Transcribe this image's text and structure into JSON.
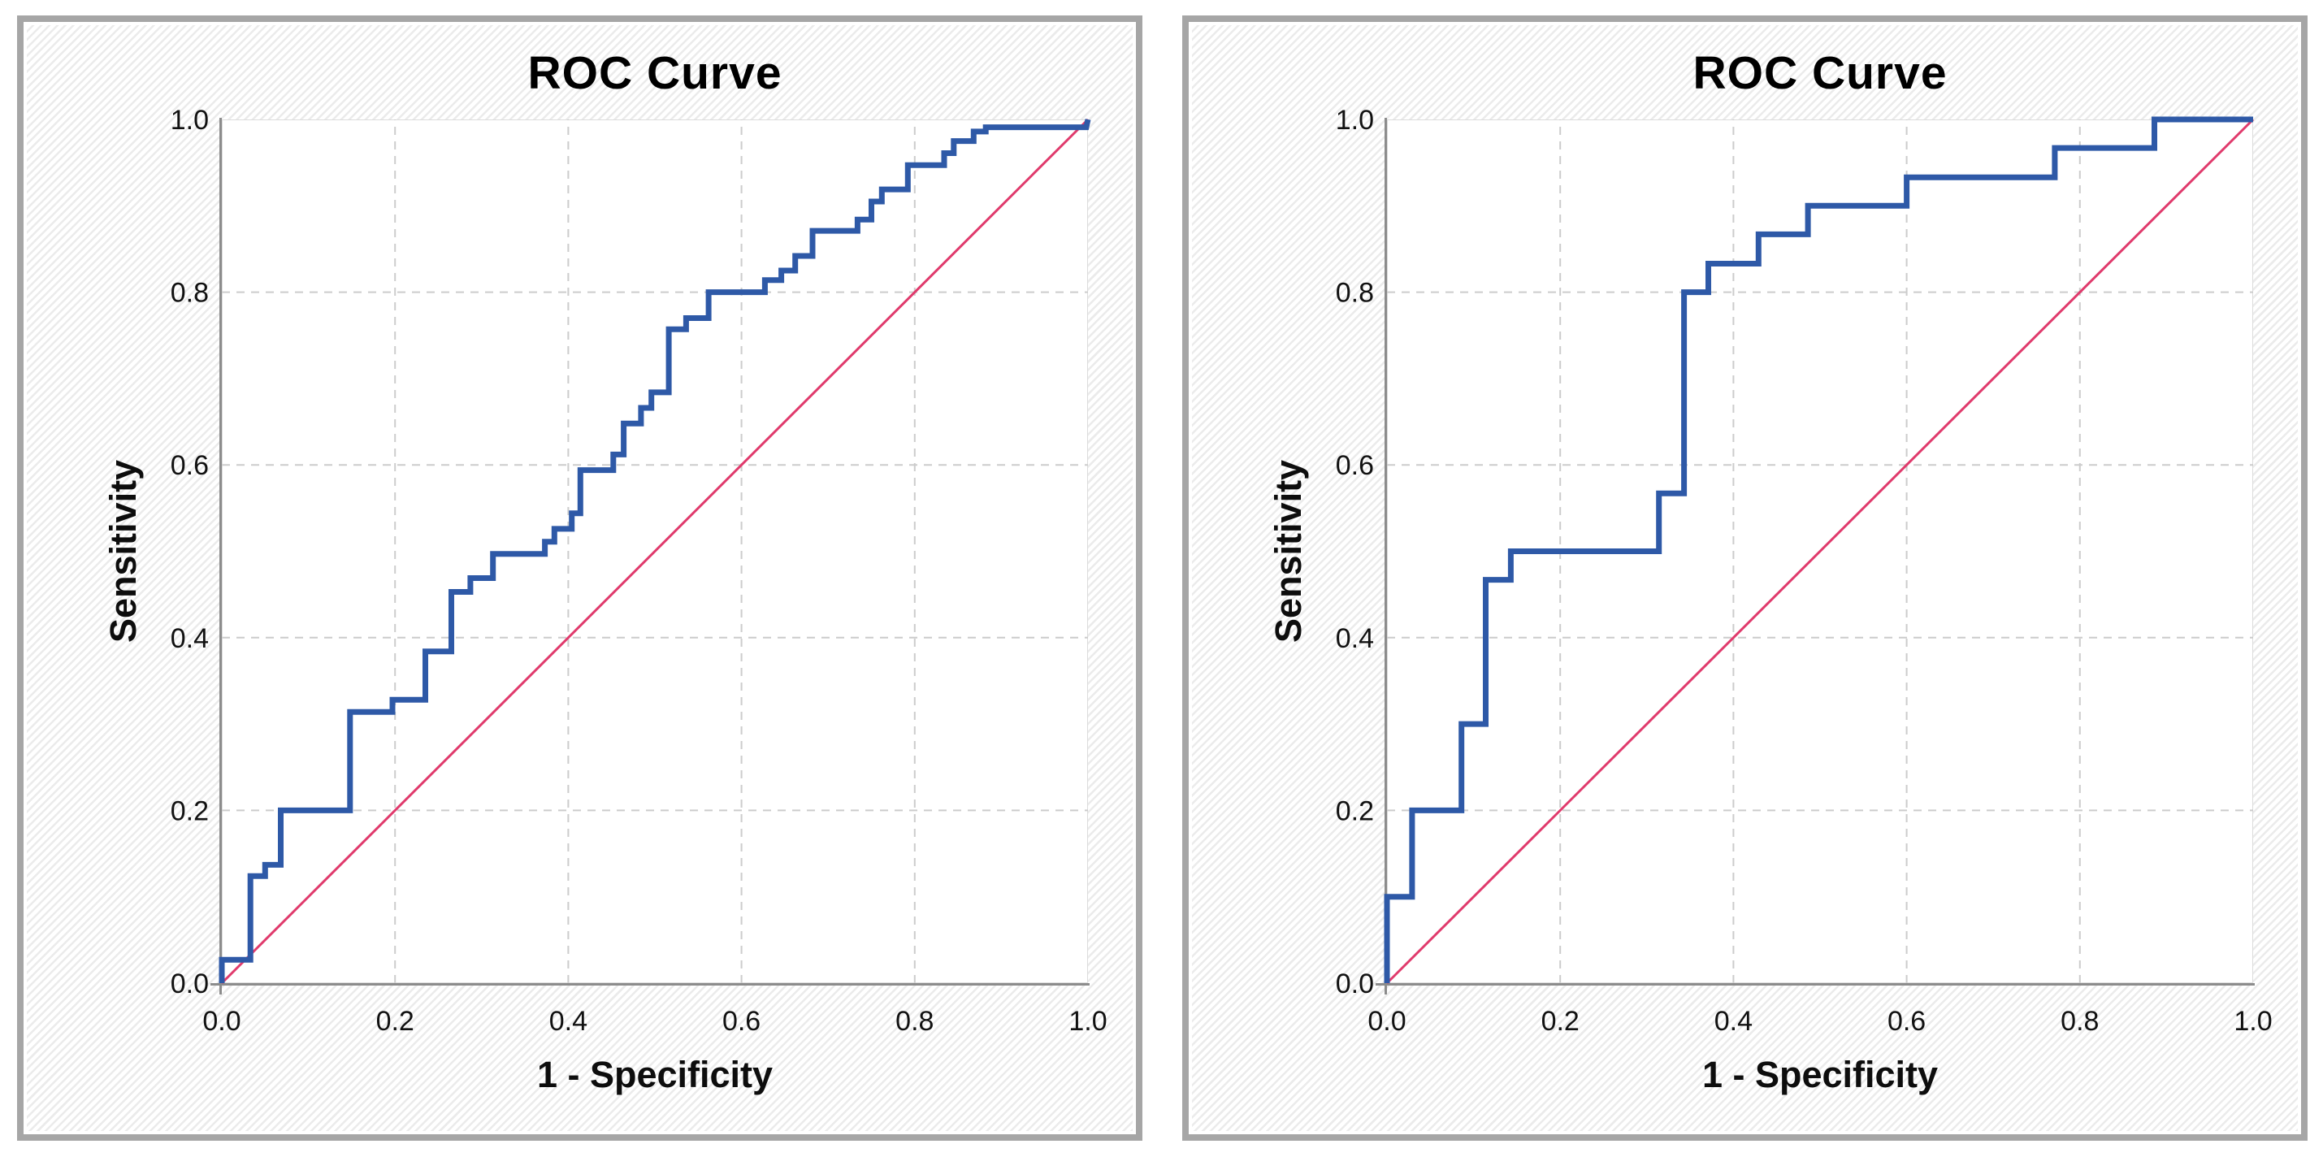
{
  "style": {
    "page_bg": "#FFFFFF",
    "panel_border": "#A6A6A6",
    "hatch_stripe": "#EBEBEB",
    "plot_bg": "#FFFFFF",
    "grid_color": "#CCCCCC",
    "axis_color": "#8C8C8C",
    "text_color": "#0D0D0D",
    "curve_color": "#2E59A7",
    "reference_color": "#E03A6C"
  },
  "chart_data": [
    {
      "type": "line",
      "title": "ROC Curve",
      "xlabel": "1 - Specificity",
      "ylabel": "Sensitivity",
      "xlim": [
        0,
        1
      ],
      "ylim": [
        0,
        1
      ],
      "grid": "dashed gridlines at 0.2 intervals",
      "legend": "none",
      "x_ticks": [
        {
          "value": 0.0,
          "label": "0.0"
        },
        {
          "value": 0.2,
          "label": "0.2"
        },
        {
          "value": 0.4,
          "label": "0.4"
        },
        {
          "value": 0.6,
          "label": "0.6"
        },
        {
          "value": 0.8,
          "label": "0.8"
        },
        {
          "value": 1.0,
          "label": "1.0"
        }
      ],
      "y_ticks": [
        {
          "value": 0.0,
          "label": "0.0"
        },
        {
          "value": 0.2,
          "label": "0.2"
        },
        {
          "value": 0.4,
          "label": "0.4"
        },
        {
          "value": 0.6,
          "label": "0.6"
        },
        {
          "value": 0.8,
          "label": "0.8"
        },
        {
          "value": 1.0,
          "label": "1.0"
        }
      ],
      "series": [
        {
          "name": "ROC curve",
          "color": "#2E59A7",
          "width": 7,
          "style": "step",
          "points": [
            [
              0,
              0
            ],
            [
              0,
              0.027
            ],
            [
              0.033,
              0.027
            ],
            [
              0.033,
              0.124
            ],
            [
              0.05,
              0.124
            ],
            [
              0.05,
              0.137
            ],
            [
              0.068,
              0.137
            ],
            [
              0.068,
              0.2
            ],
            [
              0.148,
              0.2
            ],
            [
              0.148,
              0.314
            ],
            [
              0.197,
              0.314
            ],
            [
              0.197,
              0.328
            ],
            [
              0.235,
              0.328
            ],
            [
              0.235,
              0.384
            ],
            [
              0.265,
              0.384
            ],
            [
              0.265,
              0.453
            ],
            [
              0.287,
              0.453
            ],
            [
              0.287,
              0.469
            ],
            [
              0.313,
              0.469
            ],
            [
              0.313,
              0.497
            ],
            [
              0.373,
              0.497
            ],
            [
              0.373,
              0.511
            ],
            [
              0.384,
              0.511
            ],
            [
              0.384,
              0.526
            ],
            [
              0.404,
              0.526
            ],
            [
              0.404,
              0.544
            ],
            [
              0.414,
              0.544
            ],
            [
              0.414,
              0.594
            ],
            [
              0.452,
              0.594
            ],
            [
              0.452,
              0.612
            ],
            [
              0.464,
              0.612
            ],
            [
              0.464,
              0.648
            ],
            [
              0.484,
              0.648
            ],
            [
              0.484,
              0.666
            ],
            [
              0.496,
              0.666
            ],
            [
              0.496,
              0.684
            ],
            [
              0.516,
              0.684
            ],
            [
              0.516,
              0.757
            ],
            [
              0.536,
              0.757
            ],
            [
              0.536,
              0.77
            ],
            [
              0.562,
              0.77
            ],
            [
              0.562,
              0.8
            ],
            [
              0.627,
              0.8
            ],
            [
              0.627,
              0.814
            ],
            [
              0.646,
              0.814
            ],
            [
              0.646,
              0.825
            ],
            [
              0.662,
              0.825
            ],
            [
              0.662,
              0.842
            ],
            [
              0.682,
              0.842
            ],
            [
              0.682,
              0.871
            ],
            [
              0.734,
              0.871
            ],
            [
              0.734,
              0.884
            ],
            [
              0.75,
              0.884
            ],
            [
              0.75,
              0.905
            ],
            [
              0.762,
              0.905
            ],
            [
              0.762,
              0.919
            ],
            [
              0.792,
              0.919
            ],
            [
              0.792,
              0.947
            ],
            [
              0.834,
              0.947
            ],
            [
              0.834,
              0.961
            ],
            [
              0.845,
              0.961
            ],
            [
              0.845,
              0.975
            ],
            [
              0.868,
              0.975
            ],
            [
              0.868,
              0.986
            ],
            [
              0.882,
              0.986
            ],
            [
              0.882,
              0.991
            ],
            [
              0.998,
              0.991
            ],
            [
              1,
              1
            ]
          ]
        },
        {
          "name": "Reference line",
          "color": "#E03A6C",
          "width": 3,
          "style": "line",
          "points": [
            [
              0,
              0
            ],
            [
              1,
              1
            ]
          ]
        }
      ]
    },
    {
      "type": "line",
      "title": "ROC Curve",
      "xlabel": "1 - Specificity",
      "ylabel": "Sensitivity",
      "xlim": [
        0,
        1
      ],
      "ylim": [
        0,
        1
      ],
      "grid": "dashed gridlines at 0.2 intervals",
      "legend": "none",
      "x_ticks": [
        {
          "value": 0.0,
          "label": "0.0"
        },
        {
          "value": 0.2,
          "label": "0.2"
        },
        {
          "value": 0.4,
          "label": "0.4"
        },
        {
          "value": 0.6,
          "label": "0.6"
        },
        {
          "value": 0.8,
          "label": "0.8"
        },
        {
          "value": 1.0,
          "label": "1.0"
        }
      ],
      "y_ticks": [
        {
          "value": 0.0,
          "label": "0.0"
        },
        {
          "value": 0.2,
          "label": "0.2"
        },
        {
          "value": 0.4,
          "label": "0.4"
        },
        {
          "value": 0.6,
          "label": "0.6"
        },
        {
          "value": 0.8,
          "label": "0.8"
        },
        {
          "value": 1.0,
          "label": "1.0"
        }
      ],
      "series": [
        {
          "name": "ROC curve",
          "color": "#2E59A7",
          "width": 7,
          "style": "step",
          "points": [
            [
              0,
              0
            ],
            [
              0,
              0.1
            ],
            [
              0.029,
              0.1
            ],
            [
              0.029,
              0.2
            ],
            [
              0.086,
              0.2
            ],
            [
              0.086,
              0.3
            ],
            [
              0.114,
              0.3
            ],
            [
              0.114,
              0.467
            ],
            [
              0.143,
              0.467
            ],
            [
              0.143,
              0.5
            ],
            [
              0.314,
              0.5
            ],
            [
              0.314,
              0.567
            ],
            [
              0.343,
              0.567
            ],
            [
              0.343,
              0.8
            ],
            [
              0.371,
              0.8
            ],
            [
              0.371,
              0.833
            ],
            [
              0.429,
              0.833
            ],
            [
              0.429,
              0.867
            ],
            [
              0.486,
              0.867
            ],
            [
              0.486,
              0.9
            ],
            [
              0.6,
              0.9
            ],
            [
              0.6,
              0.933
            ],
            [
              0.771,
              0.933
            ],
            [
              0.771,
              0.967
            ],
            [
              0.886,
              0.967
            ],
            [
              0.886,
              1
            ],
            [
              1,
              1
            ]
          ]
        },
        {
          "name": "Reference line",
          "color": "#E03A6C",
          "width": 3,
          "style": "line",
          "points": [
            [
              0,
              0
            ],
            [
              1,
              1
            ]
          ]
        }
      ]
    }
  ]
}
